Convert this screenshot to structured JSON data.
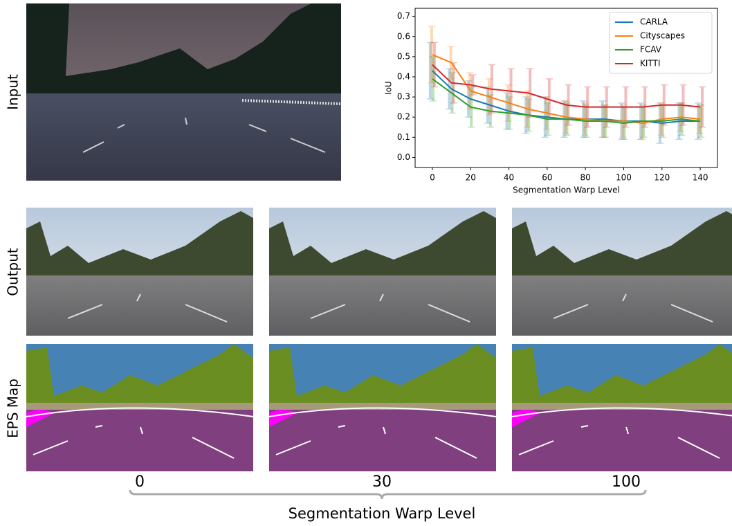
{
  "figure": {
    "row_labels": [
      "Input",
      "Output",
      "EPS Map"
    ],
    "column_labels": [
      "0",
      "30",
      "100"
    ],
    "bottom_label": "Segmentation Warp Level"
  },
  "chart_data": {
    "type": "line",
    "xlabel": "Segmentation Warp Level",
    "ylabel": "IoU",
    "x": [
      0,
      10,
      20,
      30,
      40,
      50,
      60,
      70,
      80,
      90,
      100,
      110,
      120,
      130,
      140
    ],
    "series": [
      {
        "name": "CARLA",
        "color": "#1f77b4",
        "values": [
          0.43,
          0.34,
          0.29,
          0.26,
          0.23,
          0.21,
          0.2,
          0.19,
          0.19,
          0.19,
          0.18,
          0.18,
          0.17,
          0.18,
          0.18
        ],
        "errors": [
          0.14,
          0.1,
          0.09,
          0.09,
          0.09,
          0.09,
          0.1,
          0.09,
          0.09,
          0.09,
          0.09,
          0.09,
          0.1,
          0.09,
          0.09
        ]
      },
      {
        "name": "Cityscapes",
        "color": "#ff7f0e",
        "values": [
          0.51,
          0.47,
          0.33,
          0.3,
          0.27,
          0.24,
          0.22,
          0.2,
          0.19,
          0.18,
          0.18,
          0.17,
          0.19,
          0.2,
          0.19
        ],
        "errors": [
          0.14,
          0.08,
          0.09,
          0.09,
          0.09,
          0.09,
          0.08,
          0.08,
          0.08,
          0.08,
          0.08,
          0.08,
          0.08,
          0.07,
          0.07
        ]
      },
      {
        "name": "FCAV",
        "color": "#2ca02c",
        "values": [
          0.39,
          0.32,
          0.25,
          0.23,
          0.22,
          0.21,
          0.19,
          0.19,
          0.18,
          0.18,
          0.17,
          0.18,
          0.18,
          0.19,
          0.18
        ],
        "errors": [
          0.11,
          0.1,
          0.1,
          0.08,
          0.08,
          0.08,
          0.08,
          0.08,
          0.08,
          0.08,
          0.08,
          0.08,
          0.08,
          0.08,
          0.08
        ]
      },
      {
        "name": "KITTI",
        "color": "#d62728",
        "values": [
          0.46,
          0.37,
          0.36,
          0.34,
          0.33,
          0.32,
          0.29,
          0.26,
          0.25,
          0.25,
          0.25,
          0.25,
          0.26,
          0.26,
          0.25
        ],
        "errors": [
          0.11,
          0.1,
          0.05,
          0.12,
          0.11,
          0.12,
          0.1,
          0.1,
          0.1,
          0.1,
          0.1,
          0.1,
          0.1,
          0.1,
          0.1
        ]
      }
    ],
    "xlim": [
      -9,
      149
    ],
    "ylim": [
      -0.05,
      0.74
    ],
    "xticks": [
      0,
      20,
      40,
      60,
      80,
      100,
      120,
      140
    ],
    "yticks": [
      {
        "value": 0,
        "label": "0.0"
      },
      0.1,
      0.2,
      0.3,
      0.4,
      0.5,
      0.6,
      0.7
    ],
    "legend": "upper right",
    "error_bar_opacity": 0.3
  }
}
